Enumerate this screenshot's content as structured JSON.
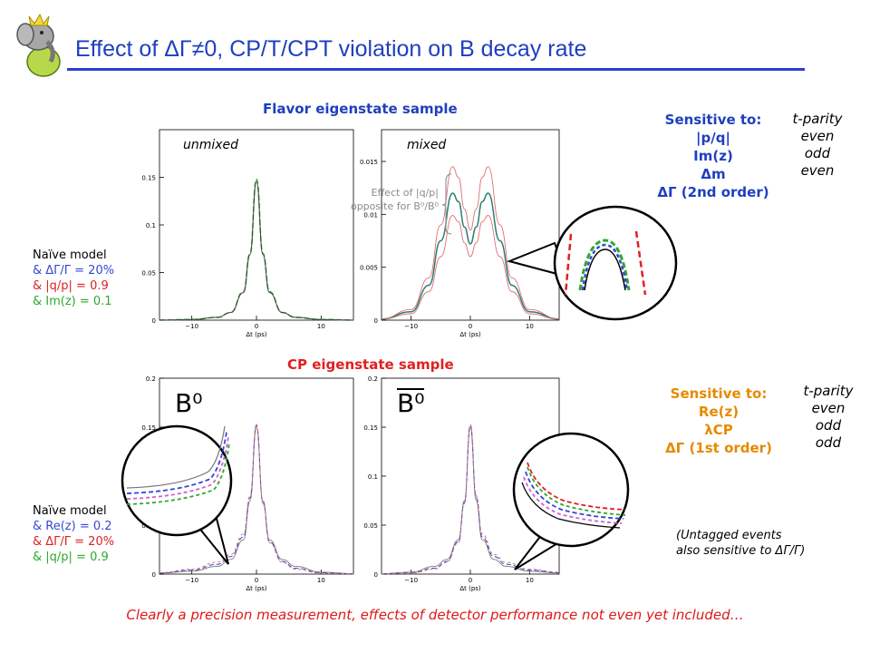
{
  "title": "Effect of ΔΓ≠0, CP/T/CPT violation on B decay rate",
  "colors": {
    "title": "#1f3fbf",
    "blue": "#3347d6",
    "red": "#e02020",
    "green": "#2ea82e",
    "footer": "#e01818"
  },
  "icons": {
    "logo": "elephant-mascot-icon"
  },
  "flavor": {
    "heading": "Flavor eigenstate sample",
    "label_unmixed": "unmixed",
    "label_mixed": "mixed",
    "annotation_line1": "Effect of |q/p|",
    "annotation_line2": "opposite for B⁰/B⁰",
    "params": {
      "header": "Naïve model",
      "line_blue": "& ΔΓ/Γ = 20%",
      "line_red": "& |q/p| = 0.9",
      "line_green": "& Im(z) = 0.1"
    },
    "sensitive": {
      "header": "Sensitive to:",
      "items": [
        "|p/q|",
        "Im(z)",
        "Δm",
        "ΔΓ (2nd order)"
      ],
      "parity_header": "t-parity",
      "parity": [
        "even",
        "odd",
        "even"
      ]
    }
  },
  "cp": {
    "heading": "CP eigenstate sample",
    "label_b0": "B⁰",
    "label_b0bar": "B⁰",
    "params": {
      "header": "Naïve model",
      "line_blue": "& Re(z) = 0.2",
      "line_red": "& ΔΓ/Γ = 20%",
      "line_green": "& |q/p| = 0.9"
    },
    "sensitive": {
      "header": "Sensitive to:",
      "items": [
        "Re(z)",
        "λCP",
        "ΔΓ (1st order)"
      ],
      "parity_header": "t-parity",
      "parity": [
        "even",
        "odd",
        "odd"
      ]
    },
    "note_line1": "(Untagged events",
    "note_line2": "also sensitive to ΔΓ/Γ)"
  },
  "footer": "Clearly a precision measurement, effects of detector performance not even yet included…",
  "chart_data": [
    {
      "type": "line",
      "title": "unmixed",
      "xlabel": "Δt (ps)",
      "ylabel": "",
      "xlim": [
        -15,
        15
      ],
      "ylim": [
        0,
        0.2
      ],
      "xticks": [
        -10,
        0,
        10
      ],
      "yticks": [
        0,
        0.05,
        0.1,
        0.15
      ],
      "tick_labels_x": [
        "−10",
        "0",
        "10"
      ],
      "tick_labels_y": [
        "0",
        "0.05",
        "0.1",
        "0.15"
      ],
      "series": [
        {
          "x": [
            -15,
            -10,
            -6,
            -4,
            -2,
            -1,
            0,
            1,
            2,
            4,
            6,
            10,
            15
          ],
          "values": [
            0.0001,
            0.0007,
            0.003,
            0.008,
            0.03,
            0.07,
            0.148,
            0.07,
            0.03,
            0.008,
            0.003,
            0.0007,
            0.0001
          ]
        },
        {
          "x": [
            -15,
            -10,
            -6,
            -4,
            -2,
            -1,
            0,
            1,
            2,
            4,
            6,
            10,
            15
          ],
          "values": [
            0.0001,
            0.0007,
            0.003,
            0.008,
            0.029,
            0.069,
            0.146,
            0.069,
            0.029,
            0.008,
            0.003,
            0.0007,
            0.0001
          ]
        }
      ]
    },
    {
      "type": "line",
      "title": "mixed",
      "xlabel": "Δt (ps)",
      "ylabel": "",
      "xlim": [
        -15,
        15
      ],
      "ylim": [
        0,
        0.018
      ],
      "xticks": [
        -10,
        0,
        10
      ],
      "yticks": [
        0,
        0.005,
        0.01,
        0.015
      ],
      "tick_labels_x": [
        "−10",
        "0",
        "10"
      ],
      "tick_labels_y": [
        "0",
        "0.005",
        "0.01",
        "0.015"
      ],
      "series": [
        {
          "x": [
            -15,
            -10,
            -7,
            -5,
            -3,
            -2,
            -1,
            0,
            1,
            2,
            3,
            5,
            7,
            10,
            15
          ],
          "values": [
            0.0001,
            0.001,
            0.004,
            0.009,
            0.0145,
            0.0135,
            0.0105,
            0.0085,
            0.0105,
            0.0135,
            0.0145,
            0.009,
            0.004,
            0.001,
            0.0001
          ]
        },
        {
          "x": [
            -15,
            -10,
            -7,
            -5,
            -3,
            -2,
            -1,
            0,
            1,
            2,
            3,
            5,
            7,
            10,
            15
          ],
          "values": [
            0.0001,
            0.0008,
            0.0033,
            0.0075,
            0.012,
            0.0112,
            0.0088,
            0.0072,
            0.0088,
            0.0112,
            0.012,
            0.0075,
            0.0033,
            0.0008,
            0.0001
          ]
        },
        {
          "x": [
            -15,
            -10,
            -7,
            -5,
            -3,
            -2,
            -1,
            0,
            1,
            2,
            3,
            5,
            7,
            10,
            15
          ],
          "values": [
            0.0001,
            0.0006,
            0.0027,
            0.006,
            0.0099,
            0.0093,
            0.0073,
            0.006,
            0.0073,
            0.0093,
            0.0099,
            0.006,
            0.0027,
            0.0006,
            0.0001
          ]
        }
      ]
    },
    {
      "type": "line",
      "title": "B⁰",
      "xlabel": "Δt (ps)",
      "ylabel": "",
      "xlim": [
        -15,
        15
      ],
      "ylim": [
        0,
        0.2
      ],
      "xticks": [
        -10,
        0,
        10
      ],
      "yticks": [
        0,
        0.05,
        0.1,
        0.15,
        0.2
      ],
      "tick_labels_x": [
        "−10",
        "0",
        "10"
      ],
      "tick_labels_y": [
        "0",
        "0.05",
        "0.1",
        "0.15",
        "0.2"
      ],
      "series": [
        {
          "x": [
            -15,
            -10,
            -6,
            -4,
            -2,
            -1,
            0,
            1,
            2,
            4,
            6,
            10,
            15
          ],
          "values": [
            0.001,
            0.003,
            0.008,
            0.015,
            0.035,
            0.075,
            0.15,
            0.075,
            0.035,
            0.015,
            0.008,
            0.002,
            0.0005
          ]
        },
        {
          "x": [
            -15,
            -10,
            -6,
            -4,
            -2,
            -1,
            0,
            1,
            2,
            4,
            6,
            10,
            15
          ],
          "values": [
            0.001,
            0.004,
            0.01,
            0.018,
            0.038,
            0.078,
            0.152,
            0.073,
            0.033,
            0.013,
            0.006,
            0.0015,
            0.0004
          ]
        },
        {
          "x": [
            -15,
            -10,
            -6,
            -4,
            -2,
            -1,
            0,
            1,
            2,
            4,
            6,
            10,
            15
          ],
          "values": [
            0.0015,
            0.005,
            0.012,
            0.02,
            0.041,
            0.08,
            0.153,
            0.072,
            0.032,
            0.012,
            0.005,
            0.001,
            0.0003
          ]
        }
      ]
    },
    {
      "type": "line",
      "title": "B⁰",
      "xlabel": "Δt (ps)",
      "ylabel": "",
      "xlim": [
        -15,
        15
      ],
      "ylim": [
        0,
        0.2
      ],
      "xticks": [
        -10,
        0,
        10
      ],
      "yticks": [
        0,
        0.05,
        0.1,
        0.15,
        0.2
      ],
      "tick_labels_x": [
        "−10",
        "0",
        "10"
      ],
      "tick_labels_y": [
        "0",
        "0.05",
        "0.1",
        "0.15",
        "0.2"
      ],
      "series": [
        {
          "x": [
            -15,
            -10,
            -6,
            -4,
            -2,
            -1,
            0,
            1,
            2,
            4,
            6,
            10,
            15
          ],
          "values": [
            0.0005,
            0.002,
            0.008,
            0.015,
            0.035,
            0.075,
            0.15,
            0.075,
            0.035,
            0.015,
            0.008,
            0.003,
            0.001
          ]
        },
        {
          "x": [
            -15,
            -10,
            -6,
            -4,
            -2,
            -1,
            0,
            1,
            2,
            4,
            6,
            10,
            15
          ],
          "values": [
            0.0004,
            0.0015,
            0.006,
            0.013,
            0.033,
            0.073,
            0.152,
            0.078,
            0.038,
            0.018,
            0.01,
            0.004,
            0.0015
          ]
        },
        {
          "x": [
            -15,
            -10,
            -6,
            -4,
            -2,
            -1,
            0,
            1,
            2,
            4,
            6,
            10,
            15
          ],
          "values": [
            0.0003,
            0.001,
            0.005,
            0.012,
            0.032,
            0.072,
            0.153,
            0.08,
            0.041,
            0.02,
            0.012,
            0.005,
            0.002
          ]
        }
      ]
    }
  ]
}
